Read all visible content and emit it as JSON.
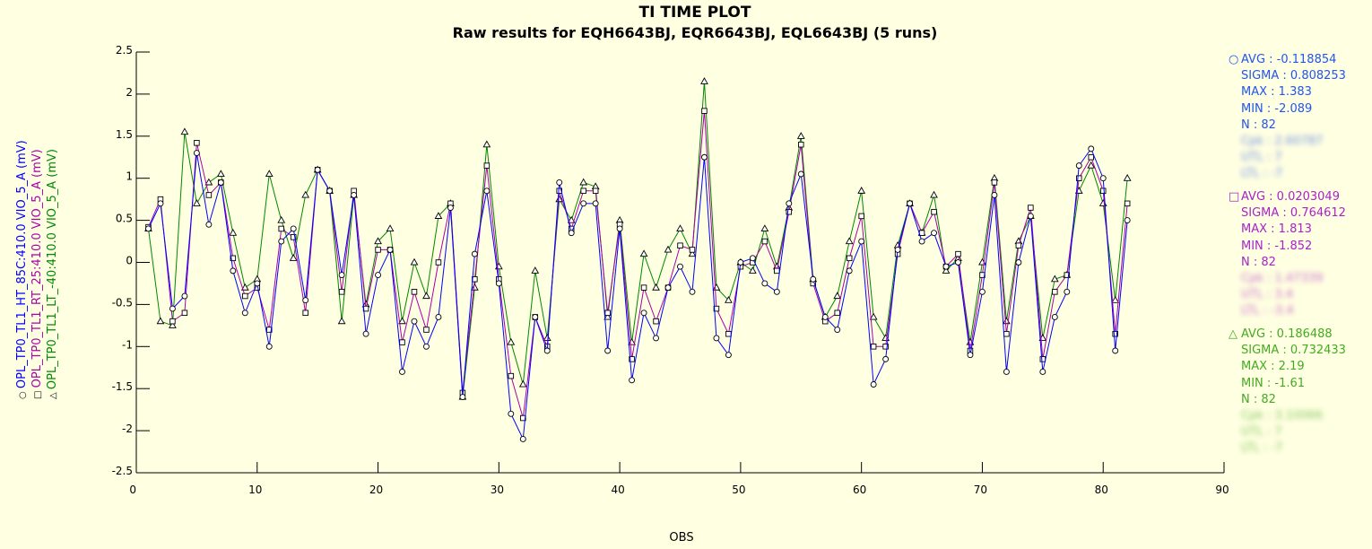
{
  "chart_data": {
    "type": "line",
    "title": "TI TIME PLOT",
    "subtitle": "Raw results for EQH6643BJ, EQR6643BJ, EQL6643BJ (5 runs)",
    "xlabel": "OBS",
    "xlim": [
      0,
      90
    ],
    "ylim": [
      -2.5,
      2.5
    ],
    "x_ticks": [
      "0",
      "10",
      "20",
      "30",
      "40",
      "50",
      "60",
      "70",
      "80",
      "90"
    ],
    "y_ticks": [
      "2.5",
      "2",
      "1.5",
      "1",
      "0.5",
      "0",
      "-0.5",
      "-1",
      "-1.5",
      "-2",
      "-2.5"
    ],
    "series": [
      {
        "name": "OPL_TP0_TL1_HT_85C:410.0",
        "axis_label": "VIO_5_A (mV)",
        "color": "#0000ff",
        "marker": "circle",
        "values": [
          0.4,
          0.7,
          -0.55,
          -0.4,
          1.3,
          0.45,
          0.95,
          -0.1,
          -0.6,
          -0.25,
          -1.0,
          0.25,
          0.4,
          -0.45,
          1.1,
          0.85,
          -0.15,
          0.8,
          -0.85,
          -0.15,
          0.15,
          -1.3,
          -0.7,
          -1.0,
          -0.65,
          0.65,
          -1.6,
          0.1,
          0.85,
          -0.25,
          -1.8,
          -2.1,
          -0.65,
          -1.05,
          0.95,
          0.35,
          0.7,
          0.7,
          -1.05,
          0.4,
          -1.4,
          -0.6,
          -0.9,
          -0.3,
          -0.05,
          -0.35,
          1.25,
          -0.9,
          -1.1,
          0.0,
          0.05,
          -0.25,
          -0.35,
          0.7,
          1.05,
          -0.2,
          -0.65,
          -0.8,
          -0.1,
          0.25,
          -1.45,
          -1.15,
          0.15,
          0.7,
          0.25,
          0.35,
          -0.05,
          0.0,
          -1.1,
          -0.35,
          0.8,
          -1.3,
          0.0,
          0.55,
          -1.3,
          -0.65,
          -0.35,
          1.15,
          1.35,
          1.0,
          -1.05,
          0.5
        ]
      },
      {
        "name": "OPL_TP0_TL1_RT_25:410.0",
        "axis_label": "VIO_5_A (mV)",
        "color": "#aa00aa",
        "marker": "square",
        "values": [
          0.42,
          0.75,
          -0.7,
          -0.6,
          1.42,
          0.8,
          0.95,
          0.05,
          -0.4,
          -0.3,
          -0.8,
          0.4,
          0.3,
          -0.6,
          1.1,
          0.85,
          -0.35,
          0.85,
          -0.55,
          0.15,
          0.15,
          -0.95,
          -0.35,
          -0.8,
          0.0,
          0.7,
          -1.55,
          -0.2,
          1.15,
          -0.2,
          -1.35,
          -1.85,
          -0.65,
          -1.0,
          0.85,
          0.4,
          0.85,
          0.85,
          -0.6,
          0.45,
          -1.15,
          -0.3,
          -0.7,
          -0.3,
          0.2,
          0.15,
          1.8,
          -0.55,
          -0.85,
          -0.05,
          0.0,
          0.25,
          -0.1,
          0.6,
          1.4,
          -0.25,
          -0.7,
          -0.6,
          0.05,
          0.55,
          -1.0,
          -1.0,
          0.1,
          0.7,
          0.35,
          0.6,
          -0.05,
          0.1,
          -1.05,
          -0.15,
          0.95,
          -0.85,
          0.2,
          0.65,
          -1.15,
          -0.35,
          -0.15,
          1.0,
          1.25,
          0.85,
          -0.85,
          0.7
        ]
      },
      {
        "name": "OPL_TP0_TL1_LT_-40:410.0",
        "axis_label": "VIO_5_A (mV)",
        "color": "#008800",
        "marker": "triangle",
        "values": [
          0.4,
          -0.7,
          -0.75,
          1.55,
          0.7,
          0.95,
          1.05,
          0.35,
          -0.3,
          -0.2,
          1.05,
          0.5,
          0.05,
          0.8,
          1.1,
          0.85,
          -0.7,
          0.8,
          -0.5,
          0.25,
          0.4,
          -0.7,
          0.0,
          -0.4,
          0.55,
          0.7,
          -1.6,
          -0.3,
          1.4,
          -0.05,
          -0.95,
          -1.45,
          -0.1,
          -0.9,
          0.75,
          0.5,
          0.95,
          0.9,
          -0.65,
          0.5,
          -0.95,
          0.1,
          -0.3,
          0.15,
          0.4,
          0.1,
          2.15,
          -0.3,
          -0.45,
          0.0,
          -0.1,
          0.4,
          -0.05,
          0.65,
          1.5,
          -0.2,
          -0.65,
          -0.4,
          0.25,
          0.85,
          -0.65,
          -0.9,
          0.2,
          0.7,
          0.35,
          0.8,
          -0.1,
          0.05,
          -0.95,
          0.0,
          1.0,
          -0.7,
          0.25,
          0.55,
          -0.9,
          -0.2,
          -0.15,
          0.85,
          1.15,
          0.7,
          -0.45,
          1.0
        ]
      }
    ]
  },
  "stats": [
    {
      "marker": "○",
      "color": "#2255ee",
      "avg": "AVG : -0.118854",
      "sigma": "SIGMA : 0.808253",
      "max": "MAX : 1.383",
      "min": "MIN : -2.089",
      "n": "N : 82",
      "cpk": "Cpk : 2.60787",
      "utl": "UTL : 7",
      "ltl": "LTL : -7"
    },
    {
      "marker": "□",
      "color": "#aa22cc",
      "avg": "AVG : 0.0203049",
      "sigma": "SIGMA : 0.764612",
      "max": "MAX : 1.813",
      "min": "MIN : -1.852",
      "n": "N : 82",
      "cpk": "Cpk : 1.47339",
      "utl": "UTL : 3.4",
      "ltl": "LTL : -3.4"
    },
    {
      "marker": "△",
      "color": "#44aa22",
      "avg": "AVG : 0.186488",
      "sigma": "SIGMA : 0.732433",
      "max": "MAX : 2.19",
      "min": "MIN : -1.61",
      "n": "N : 82",
      "cpk": "Cpk : 3.10066",
      "utl": "UTL : 7",
      "ltl": "LTL : -7"
    }
  ]
}
